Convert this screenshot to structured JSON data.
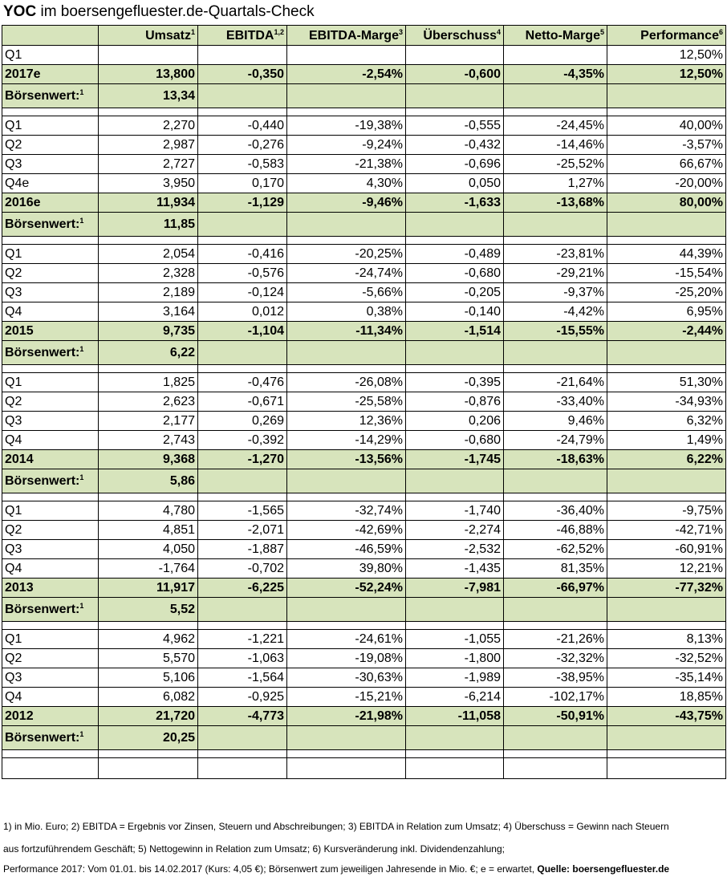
{
  "title": {
    "bold": "YOC",
    "rest": " im boersengefluester.de-Quartals-Check"
  },
  "header": [
    {
      "label": "",
      "sup": ""
    },
    {
      "label": "Umsatz",
      "sup": "1"
    },
    {
      "label": "EBITDA",
      "sup": "1,2"
    },
    {
      "label": "EBITDA-Marge",
      "sup": "3"
    },
    {
      "label": "Überschuss",
      "sup": "4"
    },
    {
      "label": "Netto-Marge",
      "sup": "5"
    },
    {
      "label": "Performance",
      "sup": "6"
    }
  ],
  "sections": [
    {
      "quarters": [
        [
          "Q1",
          "",
          "",
          "",
          "",
          "",
          "12,50%"
        ]
      ],
      "year": [
        "2017e",
        "13,800",
        "-0,350",
        "-2,54%",
        "-0,600",
        "-4,35%",
        "12,50%"
      ],
      "boersenwert": {
        "label": "Börsenwert:",
        "sup": "1",
        "value": "13,34"
      }
    },
    {
      "quarters": [
        [
          "Q1",
          "2,270",
          "-0,440",
          "-19,38%",
          "-0,555",
          "-24,45%",
          "40,00%"
        ],
        [
          "Q2",
          "2,987",
          "-0,276",
          "-9,24%",
          "-0,432",
          "-14,46%",
          "-3,57%"
        ],
        [
          "Q3",
          "2,727",
          "-0,583",
          "-21,38%",
          "-0,696",
          "-25,52%",
          "66,67%"
        ],
        [
          "Q4e",
          "3,950",
          "0,170",
          "4,30%",
          "0,050",
          "1,27%",
          "-20,00%"
        ]
      ],
      "year": [
        "2016e",
        "11,934",
        "-1,129",
        "-9,46%",
        "-1,633",
        "-13,68%",
        "80,00%"
      ],
      "boersenwert": {
        "label": "Börsenwert:",
        "sup": "1",
        "value": "11,85"
      }
    },
    {
      "quarters": [
        [
          "Q1",
          "2,054",
          "-0,416",
          "-20,25%",
          "-0,489",
          "-23,81%",
          "44,39%"
        ],
        [
          "Q2",
          "2,328",
          "-0,576",
          "-24,74%",
          "-0,680",
          "-29,21%",
          "-15,54%"
        ],
        [
          "Q3",
          "2,189",
          "-0,124",
          "-5,66%",
          "-0,205",
          "-9,37%",
          "-25,20%"
        ],
        [
          "Q4",
          "3,164",
          "0,012",
          "0,38%",
          "-0,140",
          "-4,42%",
          "6,95%"
        ]
      ],
      "year": [
        "2015",
        "9,735",
        "-1,104",
        "-11,34%",
        "-1,514",
        "-15,55%",
        "-2,44%"
      ],
      "boersenwert": {
        "label": "Börsenwert:",
        "sup": "1",
        "value": "6,22"
      }
    },
    {
      "quarters": [
        [
          "Q1",
          "1,825",
          "-0,476",
          "-26,08%",
          "-0,395",
          "-21,64%",
          "51,30%"
        ],
        [
          "Q2",
          "2,623",
          "-0,671",
          "-25,58%",
          "-0,876",
          "-33,40%",
          "-34,93%"
        ],
        [
          "Q3",
          "2,177",
          "0,269",
          "12,36%",
          "0,206",
          "9,46%",
          "6,32%"
        ],
        [
          "Q4",
          "2,743",
          "-0,392",
          "-14,29%",
          "-0,680",
          "-24,79%",
          "1,49%"
        ]
      ],
      "year": [
        "2014",
        "9,368",
        "-1,270",
        "-13,56%",
        "-1,745",
        "-18,63%",
        "6,22%"
      ],
      "boersenwert": {
        "label": "Börsenwert:",
        "sup": "1",
        "value": "5,86"
      }
    },
    {
      "quarters": [
        [
          "Q1",
          "4,780",
          "-1,565",
          "-32,74%",
          "-1,740",
          "-36,40%",
          "-9,75%"
        ],
        [
          "Q2",
          "4,851",
          "-2,071",
          "-42,69%",
          "-2,274",
          "-46,88%",
          "-42,71%"
        ],
        [
          "Q3",
          "4,050",
          "-1,887",
          "-46,59%",
          "-2,532",
          "-62,52%",
          "-60,91%"
        ],
        [
          "Q4",
          "-1,764",
          "-0,702",
          "39,80%",
          "-1,435",
          "81,35%",
          "12,21%"
        ]
      ],
      "year": [
        "2013",
        "11,917",
        "-6,225",
        "-52,24%",
        "-7,981",
        "-66,97%",
        "-77,32%"
      ],
      "boersenwert": {
        "label": "Börsenwert:",
        "sup": "1",
        "value": "5,52"
      }
    },
    {
      "quarters": [
        [
          "Q1",
          "4,962",
          "-1,221",
          "-24,61%",
          "-1,055",
          "-21,26%",
          "8,13%"
        ],
        [
          "Q2",
          "5,570",
          "-1,063",
          "-19,08%",
          "-1,800",
          "-32,32%",
          "-32,52%"
        ],
        [
          "Q3",
          "5,106",
          "-1,564",
          "-30,63%",
          "-1,989",
          "-38,95%",
          "-35,14%"
        ],
        [
          "Q4",
          "6,082",
          "-0,925",
          "-15,21%",
          "-6,214",
          "-102,17%",
          "18,85%"
        ]
      ],
      "year": [
        "2012",
        "21,720",
        "-4,773",
        "-21,98%",
        "-11,058",
        "-50,91%",
        "-43,75%"
      ],
      "boersenwert": {
        "label": "Börsenwert:",
        "sup": "1",
        "value": "20,25"
      }
    }
  ],
  "footnotes": {
    "line1": "1) in Mio. Euro; 2) EBITDA = Ergebnis vor Zinsen, Steuern und Abschreibungen; 3) EBITDA in Relation zum Umsatz; 4) Überschuss = Gewinn nach Steuern",
    "line2": "aus fortzuführendem Geschäft; 5) Nettogewinn in Relation zum Umsatz; 6) Kursveränderung inkl. Dividendenzahlung;",
    "line3_plain": "Performance 2017: Vom 01.01. bis 14.02.2017 (Kurs: 4,05 €);  Börsenwert zum jeweiligen Jahresende in Mio. €; e = erwartet, ",
    "line3_bold": "Quelle: boersengefluester.de"
  },
  "colors": {
    "highlight_green": "#d7e4bc",
    "border": "#000000"
  }
}
